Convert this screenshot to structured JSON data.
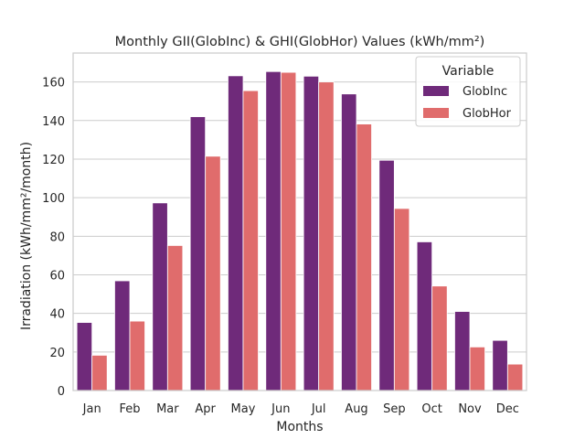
{
  "chart_data": {
    "type": "bar",
    "title": "Monthly GII(GlobInc) & GHI(GlobHor) Values (kWh/mm²)",
    "xlabel": "Months",
    "ylabel": "Irradiation (kWh/mm²/month)",
    "categories": [
      "Jan",
      "Feb",
      "Mar",
      "Apr",
      "May",
      "Jun",
      "Jul",
      "Aug",
      "Sep",
      "Oct",
      "Nov",
      "Dec"
    ],
    "series": [
      {
        "name": "GlobInc",
        "color": "#6f2a7a",
        "values": [
          35.3,
          56.9,
          97.3,
          142.0,
          163.2,
          165.4,
          163.0,
          153.8,
          119.4,
          77.1,
          41.0,
          26.0
        ]
      },
      {
        "name": "GlobHor",
        "color": "#e06c6c",
        "values": [
          18.3,
          36.0,
          75.2,
          121.5,
          155.5,
          165.0,
          160.0,
          138.2,
          94.4,
          54.2,
          22.6,
          13.7
        ]
      }
    ],
    "ylim": [
      0,
      175
    ],
    "yticks": [
      0,
      20,
      40,
      60,
      80,
      100,
      120,
      140,
      160
    ],
    "grid": true,
    "legend": {
      "title": "Variable",
      "position": "top-right"
    }
  }
}
